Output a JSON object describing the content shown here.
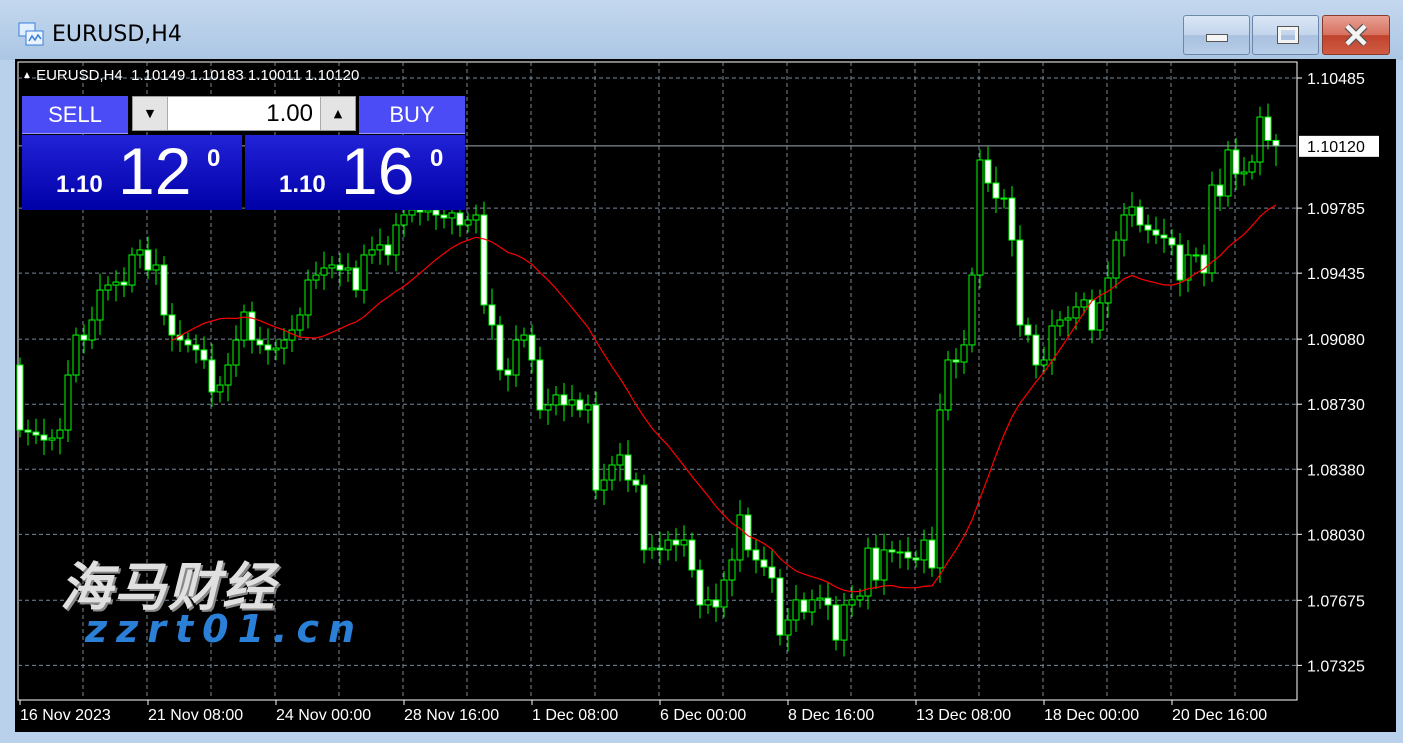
{
  "window": {
    "title": "EURUSD,H4",
    "icon": "chart-window-icon",
    "buttons": [
      "minimize-icon",
      "restore-icon",
      "close-icon"
    ]
  },
  "chart_header": {
    "arrow": "triangle-up-icon",
    "text": "EURUSD,H4  1.10149 1.10183 1.10011 1.10120"
  },
  "trade_panel": {
    "sell_label": "SELL",
    "buy_label": "BUY",
    "lot": "1.00",
    "sell_price": {
      "prefix": "1.10",
      "big": "12",
      "sup": "0"
    },
    "buy_price": {
      "prefix": "1.10",
      "big": "16",
      "sup": "0"
    }
  },
  "watermark": {
    "text": "海马财经",
    "url": "zzrt01.cn"
  },
  "chart_data": {
    "type": "candlestick",
    "symbol": "EURUSD",
    "timeframe": "H4",
    "colors": {
      "background": "#000000",
      "candle_outline": "#00ff00",
      "bear_body": "#ffffff",
      "bull_body": "#000000",
      "ma_line": "#ff0000",
      "grid": "#778899"
    },
    "grid": true,
    "ylim": [
      1.0711,
      1.1057
    ],
    "y_ticks": [
      "1.10485",
      "1.09785",
      "1.09435",
      "1.09080",
      "1.08730",
      "1.08380",
      "1.08030",
      "1.07675",
      "1.07325"
    ],
    "current_price": "1.10120",
    "x_ticks": [
      {
        "bar": 0,
        "label": "16 Nov 2023"
      },
      {
        "bar": 16,
        "label": "21 Nov 08:00"
      },
      {
        "bar": 32,
        "label": "24 Nov 00:00"
      },
      {
        "bar": 48,
        "label": "28 Nov 16:00"
      },
      {
        "bar": 64,
        "label": "1 Dec 08:00"
      },
      {
        "bar": 80,
        "label": "6 Dec 00:00"
      },
      {
        "bar": 96,
        "label": "8 Dec 16:00"
      },
      {
        "bar": 112,
        "label": "13 Dec 08:00"
      },
      {
        "bar": 128,
        "label": "18 Dec 00:00"
      },
      {
        "bar": 144,
        "label": "20 Dec 16:00"
      }
    ],
    "first_open": 1.08941,
    "last_bar": {
      "open": 1.10149,
      "high": 1.10183,
      "low": 1.10011,
      "close": 1.1012
    },
    "close": [
      1.08591,
      1.0858,
      1.08564,
      1.08537,
      1.08548,
      1.08591,
      1.08887,
      1.09102,
      1.09075,
      1.09183,
      1.09344,
      1.09371,
      1.09387,
      1.09371,
      1.09533,
      1.0956,
      1.09452,
      1.09479,
      1.0921,
      1.09102,
      1.09075,
      1.09049,
      1.09022,
      1.08968,
      1.08796,
      1.08833,
      1.08941,
      1.09075,
      1.09226,
      1.09075,
      1.09049,
      1.09022,
      1.09032,
      1.09075,
      1.09129,
      1.0921,
      1.09398,
      1.09425,
      1.09463,
      1.09479,
      1.09452,
      1.09463,
      1.09344,
      1.09533,
      1.0956,
      1.09587,
      1.09533,
      1.09694,
      1.09748,
      1.09775,
      1.09764,
      1.09775,
      1.09748,
      1.09732,
      1.09759,
      1.09694,
      1.09721,
      1.09748,
      1.09264,
      1.09156,
      1.08914,
      1.08887,
      1.09075,
      1.09102,
      1.08968,
      1.08699,
      1.08726,
      1.0878,
      1.08726,
      1.08753,
      1.08699,
      1.08726,
      1.08268,
      1.08322,
      1.08403,
      1.08457,
      1.08322,
      1.08295,
      1.07946,
      1.07956,
      1.07946,
      1.07999,
      1.07973,
      1.07999,
      1.07838,
      1.0765,
      1.07677,
      1.07639,
      1.07784,
      1.07892,
      1.08134,
      1.07946,
      1.07892,
      1.07854,
      1.07795,
      1.07488,
      1.07569,
      1.07677,
      1.07612,
      1.07677,
      1.07687,
      1.0765,
      1.07461,
      1.0765,
      1.07677,
      1.07698,
      1.07956,
      1.07784,
      1.07946,
      1.07935,
      1.07935,
      1.07903,
      1.07892,
      1.07999,
      1.07849,
      1.08699,
      1.08968,
      1.08957,
      1.09049,
      1.09425,
      1.10044,
      1.0992,
      1.09839,
      1.09839,
      1.09613,
      1.09156,
      1.09102,
      1.08941,
      1.08968,
      1.09151,
      1.09183,
      1.09194,
      1.09253,
      1.09291,
      1.09129,
      1.09275,
      1.09409,
      1.09613,
      1.09748,
      1.09791,
      1.09694,
      1.09667,
      1.0964,
      1.09624,
      1.09587,
      1.09398,
      1.09533,
      1.09533,
      1.09436,
      1.09909,
      1.0985,
      1.10098,
      1.09969,
      1.09979,
      1.10033,
      1.10275,
      1.10149,
      1.1012
    ]
  }
}
